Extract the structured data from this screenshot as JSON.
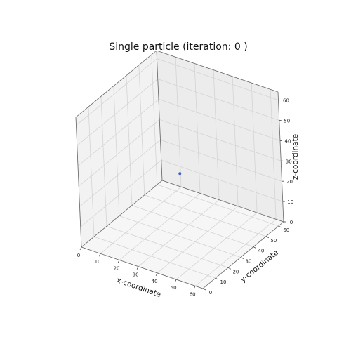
{
  "chart_data": {
    "type": "scatter",
    "title": "Single particle (iteration: 0 )",
    "xlabel": "x-coordinate",
    "ylabel": "y-coordinate",
    "zlabel": "z-coordinate",
    "xlim": [
      0,
      64
    ],
    "ylim": [
      0,
      64
    ],
    "zlim": [
      0,
      64
    ],
    "x_ticks": [
      0,
      10,
      20,
      30,
      40,
      50,
      60
    ],
    "y_ticks": [
      0,
      10,
      20,
      30,
      40,
      50,
      60
    ],
    "z_ticks": [
      0,
      10,
      20,
      30,
      40,
      50,
      60
    ],
    "grid": true,
    "points": [
      {
        "x": 32,
        "y": 32,
        "z": 30
      }
    ],
    "point_color": "#3b5fce",
    "pane_color": "#f2f2f2",
    "grid_color": "#d4d4d4"
  }
}
